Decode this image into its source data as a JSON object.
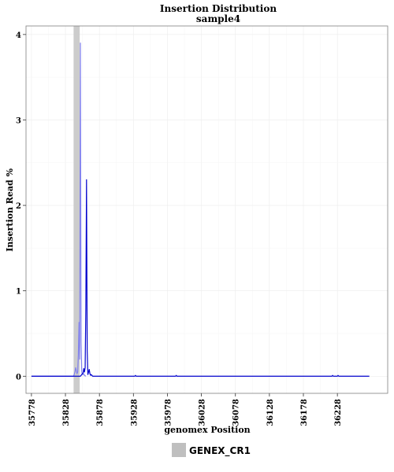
{
  "chart_data": {
    "type": "line",
    "title": "Insertion Distribution",
    "subtitle": "sample4",
    "xlabel": "genomex Position",
    "ylabel": "Insertion Read %",
    "xlim": [
      35770,
      36302
    ],
    "ylim": [
      -0.2,
      4.1
    ],
    "x_ticks": [
      35778,
      35828,
      35878,
      35928,
      35978,
      36028,
      36078,
      36128,
      36178,
      36228
    ],
    "x_tick_labels": [
      "35778",
      "35828",
      "35878",
      "35928",
      "35978",
      "36028",
      "36078",
      "36128",
      "36178",
      "36228"
    ],
    "y_ticks": [
      0,
      1,
      2,
      3,
      4
    ],
    "y_tick_labels": [
      "0",
      "1",
      "2",
      "3",
      "4"
    ],
    "grid": true,
    "legend_position": "bottom",
    "highlight_region": {
      "name": "GENEX_CR1",
      "x_start": 35840,
      "x_end": 35849,
      "color": "#cccccc"
    },
    "series": [
      {
        "color": "#8080ee",
        "x": [
          35778,
          35840,
          35842,
          35843,
          35845,
          35846,
          35847,
          35848,
          35849,
          35850,
          35851,
          35852,
          35853,
          35854,
          35855,
          35856,
          35858
        ],
        "values": [
          0,
          0,
          0.05,
          0.1,
          0.03,
          0.05,
          0.25,
          0.63,
          0.2,
          3.9,
          0.4,
          0.05,
          0.02,
          0.02,
          0.03,
          0.01,
          0
        ]
      },
      {
        "color": "#0000cc",
        "x": [
          35778,
          35850,
          35852,
          35854,
          35855,
          35856,
          35857,
          35858,
          35859,
          35860,
          35861,
          35862,
          35863,
          35864,
          35865,
          35866,
          35868,
          35880,
          35930,
          35931,
          35932,
          35990,
          35991,
          35992,
          36220,
          36221,
          36222,
          36228,
          36229,
          36230,
          36275
        ],
        "values": [
          0,
          0,
          0.02,
          0.04,
          0.09,
          0.05,
          0.1,
          0.8,
          2.3,
          0.3,
          0.02,
          0.05,
          0.08,
          0.03,
          0.01,
          0.02,
          0,
          0,
          0,
          0.01,
          0,
          0,
          0.01,
          0,
          0,
          0.01,
          0,
          0,
          0.01,
          0,
          0
        ]
      }
    ]
  },
  "legend": {
    "items": [
      {
        "label": "GENEX_CR1",
        "color": "#bfbfbf"
      }
    ]
  }
}
